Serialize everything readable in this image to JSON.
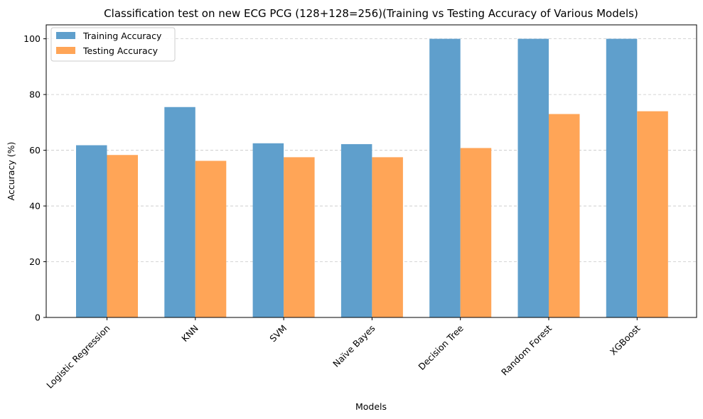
{
  "chart_data": {
    "type": "bar",
    "title": "Classification test on new ECG PCG (128+128=256)(Training vs Testing Accuracy of Various Models)",
    "xlabel": "Models",
    "ylabel": "Accuracy (%)",
    "categories": [
      "Logistic Regression",
      "KNN",
      "SVM",
      "Naïve Bayes",
      "Decision Tree",
      "Random Forest",
      "XGBoost"
    ],
    "series": [
      {
        "name": "Training Accuracy",
        "color": "#5f9fcc",
        "values": [
          61.8,
          75.5,
          62.5,
          62.2,
          100,
          100,
          100
        ]
      },
      {
        "name": "Testing Accuracy",
        "color": "#ffa557",
        "values": [
          58.3,
          56.2,
          57.5,
          57.5,
          60.8,
          73.0,
          74.0
        ]
      }
    ],
    "ylim": [
      0,
      105
    ],
    "yticks": [
      0,
      20,
      40,
      60,
      80,
      100
    ],
    "grid": "y",
    "legend_position": "upper-left"
  }
}
